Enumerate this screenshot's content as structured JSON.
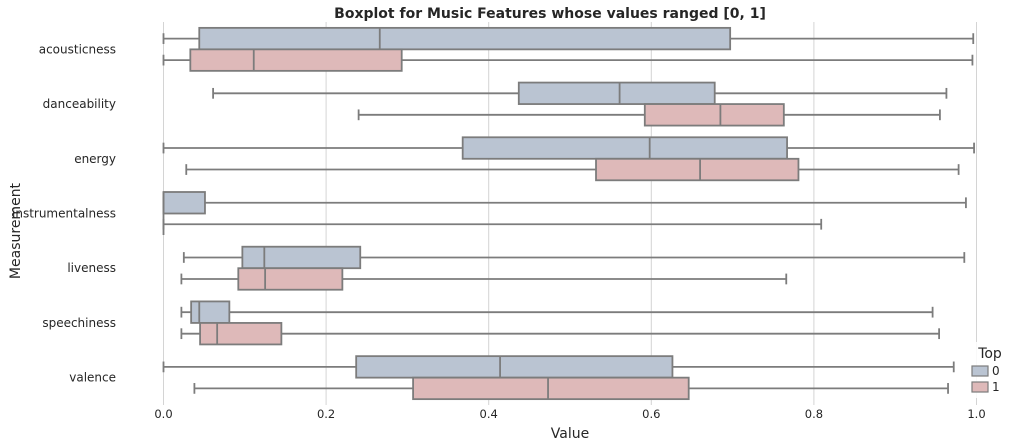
{
  "chart_data": {
    "type": "boxplot",
    "orientation": "horizontal",
    "title": "Boxplot for Music Features whose values ranged [0, 1]",
    "xlabel": "Value",
    "ylabel": "Measurement",
    "xlim": [
      -0.04,
      1.02
    ],
    "xticks": [
      "0.0",
      "0.2",
      "0.4",
      "0.6",
      "0.8",
      "1.0"
    ],
    "grid": "vertical",
    "legend": {
      "title": "Top",
      "position": "bottom-right"
    },
    "categories": [
      "acousticness",
      "danceability",
      "energy",
      "instrumentalness",
      "liveness",
      "speechiness",
      "valence"
    ],
    "series": [
      {
        "name": "0",
        "color": "#bac4d2",
        "boxes": [
          {
            "whislo": 0.0,
            "q1": 0.044,
            "median": 0.266,
            "q3": 0.697,
            "whishi": 0.996
          },
          {
            "whislo": 0.061,
            "q1": 0.437,
            "median": 0.561,
            "q3": 0.678,
            "whishi": 0.963
          },
          {
            "whislo": 0.0,
            "q1": 0.368,
            "median": 0.598,
            "q3": 0.767,
            "whishi": 0.997
          },
          {
            "whislo": 0.0,
            "q1": 0.0,
            "median": 0.0,
            "q3": 0.051,
            "whishi": 0.987
          },
          {
            "whislo": 0.025,
            "q1": 0.097,
            "median": 0.124,
            "q3": 0.242,
            "whishi": 0.985
          },
          {
            "whislo": 0.022,
            "q1": 0.034,
            "median": 0.044,
            "q3": 0.081,
            "whishi": 0.946
          },
          {
            "whislo": 0.0,
            "q1": 0.237,
            "median": 0.414,
            "q3": 0.626,
            "whishi": 0.972
          }
        ]
      },
      {
        "name": "1",
        "color": "#deb9b9",
        "boxes": [
          {
            "whislo": 0.0,
            "q1": 0.033,
            "median": 0.111,
            "q3": 0.293,
            "whishi": 0.995
          },
          {
            "whislo": 0.24,
            "q1": 0.592,
            "median": 0.685,
            "q3": 0.763,
            "whishi": 0.955
          },
          {
            "whislo": 0.028,
            "q1": 0.532,
            "median": 0.66,
            "q3": 0.781,
            "whishi": 0.978
          },
          {
            "whislo": 0.0,
            "q1": 0.0,
            "median": 0.0,
            "q3": 0.0,
            "whishi": 0.809
          },
          {
            "whislo": 0.022,
            "q1": 0.092,
            "median": 0.125,
            "q3": 0.22,
            "whishi": 0.766
          },
          {
            "whislo": 0.022,
            "q1": 0.045,
            "median": 0.066,
            "q3": 0.145,
            "whishi": 0.954
          },
          {
            "whislo": 0.038,
            "q1": 0.307,
            "median": 0.473,
            "q3": 0.646,
            "whishi": 0.965
          }
        ]
      }
    ]
  }
}
